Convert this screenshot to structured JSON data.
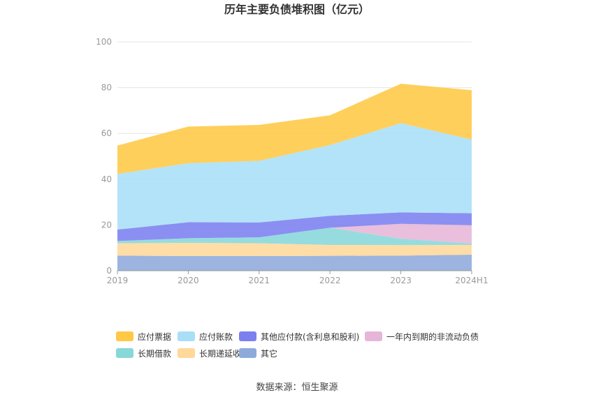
{
  "chart_data": {
    "type": "area",
    "stacked": true,
    "title": "历年主要负债堆积图（亿元）",
    "source": "数据来源：恒生聚源",
    "categories": [
      "2019",
      "2020",
      "2021",
      "2022",
      "2023",
      "2024H1"
    ],
    "ylim": [
      0,
      100
    ],
    "yticks": [
      0,
      20,
      40,
      60,
      80,
      100
    ],
    "grid": true,
    "legend_position": "bottom",
    "series": [
      {
        "name": "其它",
        "color": "#8eaadb",
        "values": [
          6.6,
          6.4,
          6.4,
          6.5,
          6.6,
          7.0
        ]
      },
      {
        "name": "长期递延收益",
        "color": "#ffd89a",
        "values": [
          5.4,
          5.8,
          5.6,
          4.8,
          4.6,
          4.3
        ]
      },
      {
        "name": "长期借款",
        "color": "#88d7d9",
        "values": [
          1.0,
          2.0,
          2.6,
          7.5,
          2.8,
          0.6
        ]
      },
      {
        "name": "一年内到期的非流动负债",
        "color": "#e6b6d8",
        "values": [
          0.0,
          0.0,
          0.0,
          0.0,
          6.5,
          8.0
        ]
      },
      {
        "name": "其他应付款(含利息和股利)",
        "color": "#7b7ff0",
        "values": [
          5.0,
          7.0,
          6.5,
          5.2,
          5.0,
          5.2
        ]
      },
      {
        "name": "应付账款",
        "color": "#a8dff7",
        "values": [
          24.3,
          25.8,
          26.9,
          30.9,
          39.0,
          32.2
        ]
      },
      {
        "name": "应付票据",
        "color": "#ffc845",
        "values": [
          12.4,
          16.0,
          15.7,
          13.0,
          17.2,
          21.6
        ]
      }
    ],
    "legend_order": [
      "应付票据",
      "应付账款",
      "其他应付款(含利息和股利)",
      "一年内到期的非流动负债",
      "长期借款",
      "长期递延收益",
      "其它"
    ]
  }
}
